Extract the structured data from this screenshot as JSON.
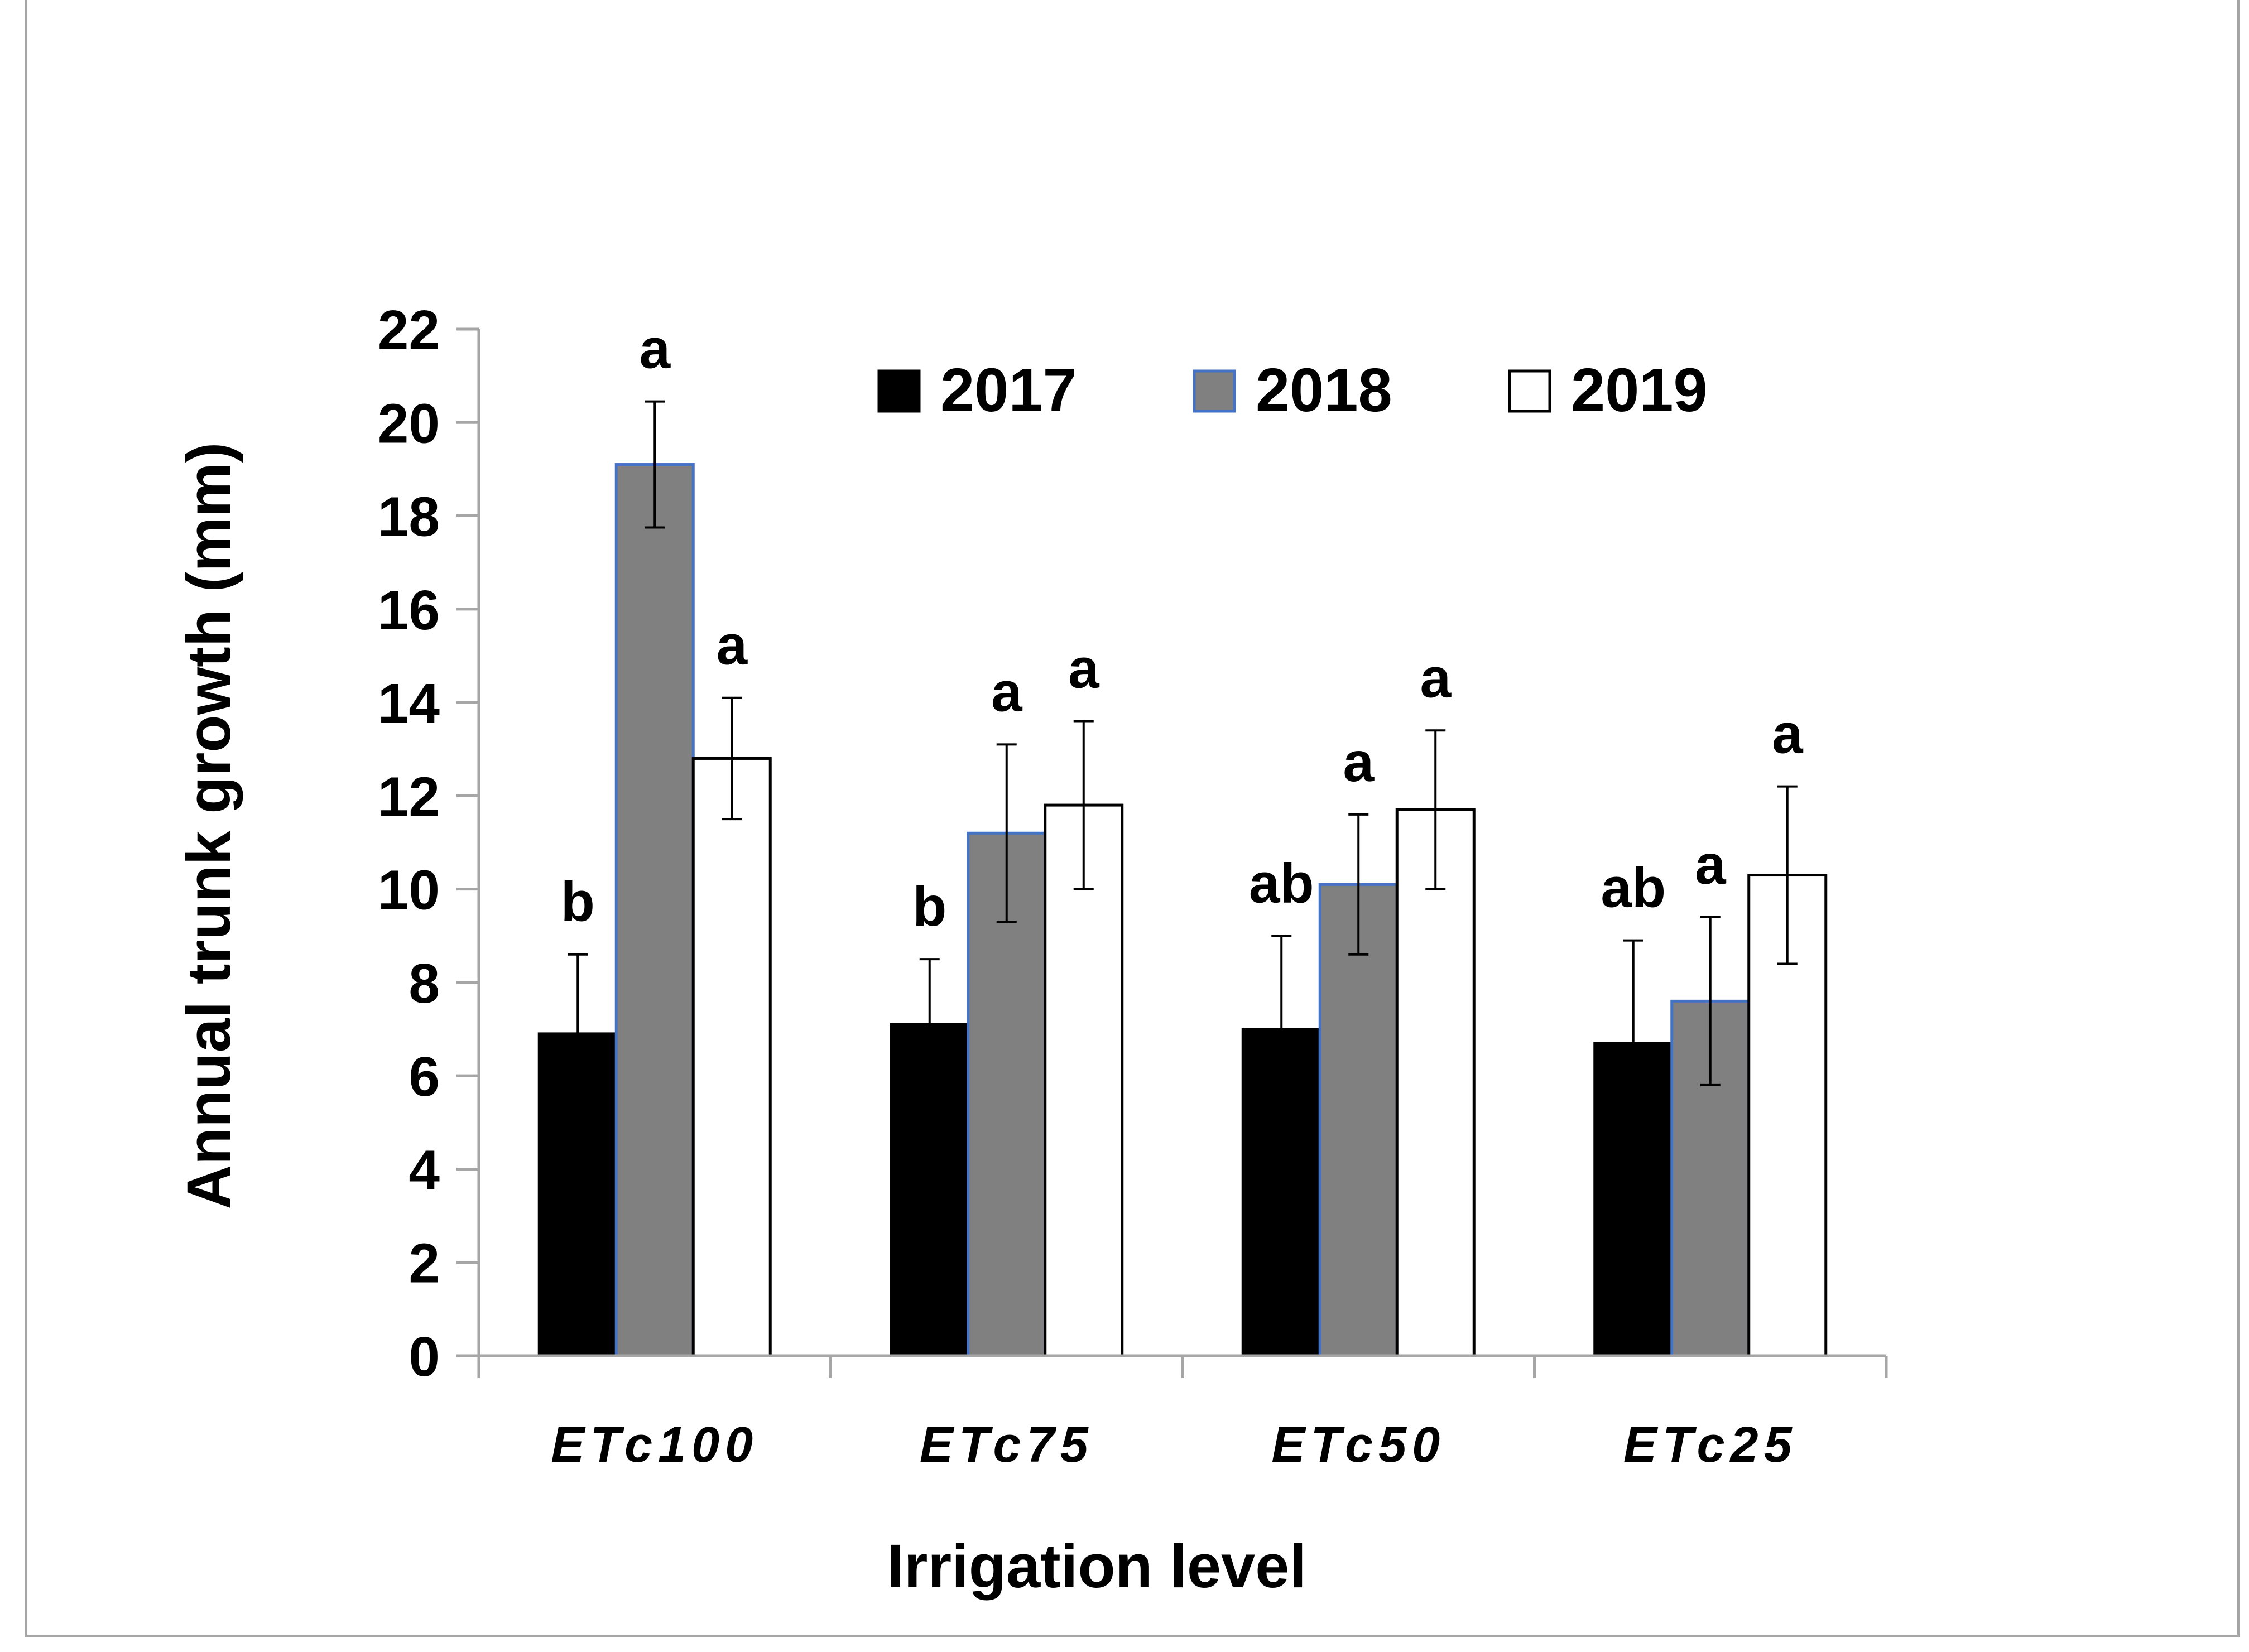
{
  "chart_data": {
    "type": "bar",
    "title": "",
    "xlabel": "Irrigation level",
    "ylabel": "Annual trunk growth (mm)",
    "ylim": [
      0,
      22
    ],
    "yticks": [
      "0",
      "2",
      "4",
      "6",
      "8",
      "10",
      "12",
      "14",
      "16",
      "18",
      "20",
      "22"
    ],
    "categories": [
      "ETc100",
      "ETc75",
      "ETc50",
      "ETc25"
    ],
    "legend_position": "top",
    "series": [
      {
        "name": "2017",
        "color": "#000000",
        "values": [
          6.9,
          7.1,
          7.0,
          6.7
        ],
        "errors": [
          1.7,
          1.4,
          2.0,
          2.2
        ],
        "letters": [
          "b",
          "b",
          "ab",
          "ab"
        ]
      },
      {
        "name": "2018",
        "color": "#808080",
        "values": [
          19.1,
          11.2,
          10.1,
          7.6
        ],
        "errors": [
          1.35,
          1.9,
          1.5,
          1.8
        ],
        "letters": [
          "a",
          "a",
          "a",
          "a"
        ]
      },
      {
        "name": "2019",
        "color": "#ffffff",
        "values": [
          12.8,
          11.8,
          11.7,
          10.3
        ],
        "errors": [
          1.3,
          1.8,
          1.7,
          1.9
        ],
        "letters": [
          "a",
          "a",
          "a",
          "a"
        ]
      }
    ]
  }
}
